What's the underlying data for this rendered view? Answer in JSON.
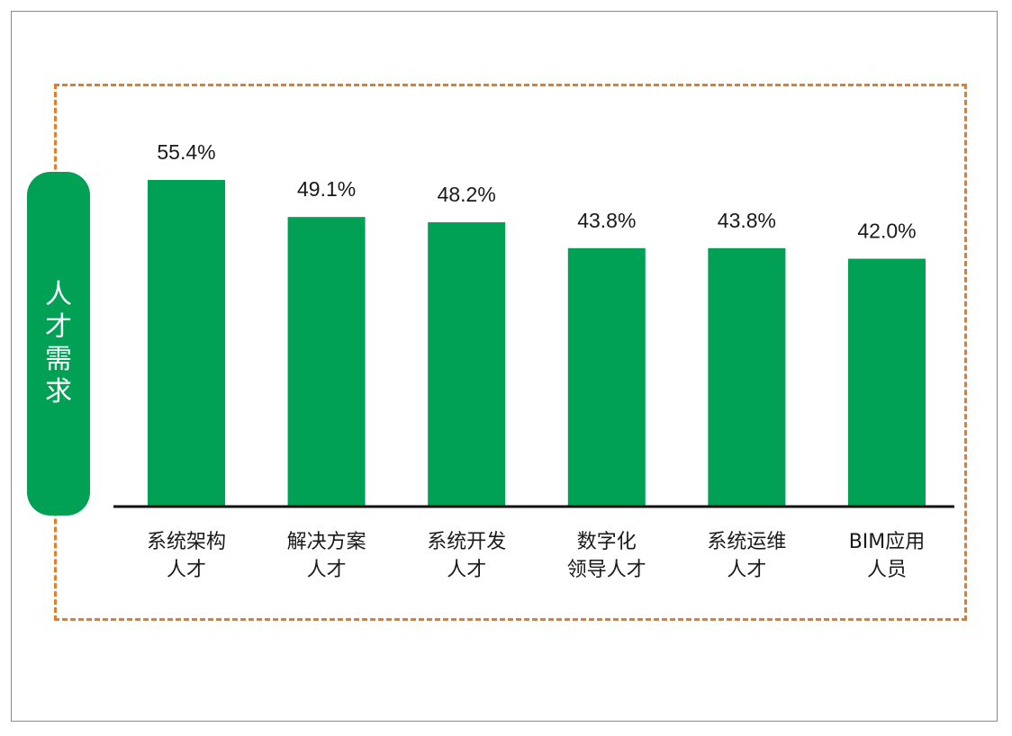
{
  "colors": {
    "bar": "#00A055",
    "dash": "#E07F2B",
    "axis": "#111111",
    "label_box": "#00A055"
  },
  "ylabel": "人才需求",
  "chart_data": {
    "type": "bar",
    "title": "",
    "xlabel": "",
    "ylabel": "人才需求",
    "categories": [
      [
        "系统架构",
        "人才"
      ],
      [
        "解决方案",
        "人才"
      ],
      [
        "系统开发",
        "人才"
      ],
      [
        "数字化",
        "领导人才"
      ],
      [
        "系统运维",
        "人才"
      ],
      [
        "BIM应用",
        "人员"
      ]
    ],
    "values": [
      55.4,
      49.1,
      48.2,
      43.8,
      43.8,
      42.0
    ],
    "value_labels": [
      "55.4%",
      "49.1%",
      "48.2%",
      "43.8%",
      "43.8%",
      "42.0%"
    ],
    "ylim": [
      0,
      55.4
    ],
    "grid": false,
    "legend": "none"
  }
}
